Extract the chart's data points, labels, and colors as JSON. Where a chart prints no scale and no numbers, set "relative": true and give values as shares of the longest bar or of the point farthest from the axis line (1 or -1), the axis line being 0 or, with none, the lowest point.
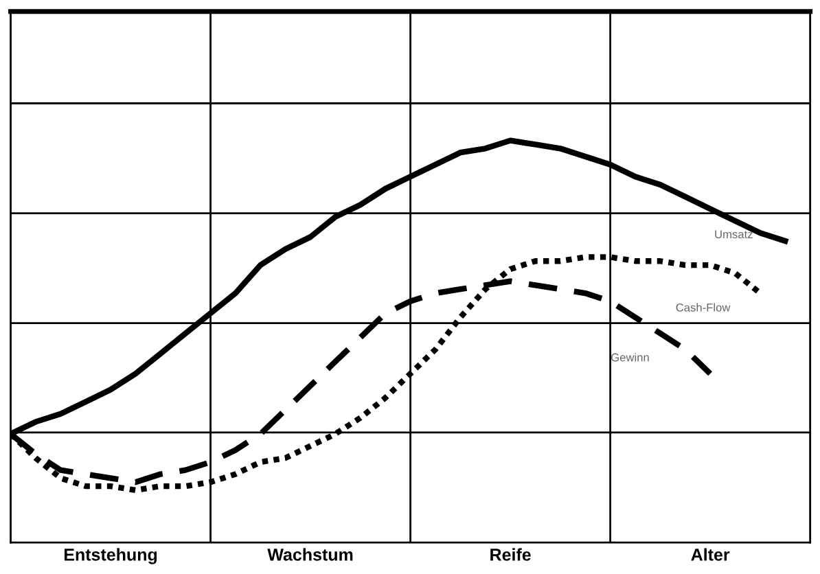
{
  "chart_data": {
    "type": "line",
    "relative": true,
    "grid": true,
    "legend": false,
    "marker": "none",
    "categories": [
      null,
      null,
      null,
      null,
      "Entstehung",
      null,
      null,
      null,
      null,
      null,
      null,
      null,
      "Wachstum",
      null,
      null,
      null,
      null,
      null,
      null,
      null,
      "Reife",
      null,
      null,
      null,
      null,
      null,
      null,
      null,
      "Alter",
      null,
      null,
      null,
      null
    ],
    "series": [
      {
        "name": "Umsatz",
        "color": "#000000",
        "line_style": "solid",
        "values": [
          0.27,
          0.3,
          0.32,
          0.35,
          0.38,
          0.42,
          0.47,
          0.52,
          0.57,
          0.62,
          0.69,
          0.73,
          0.76,
          0.81,
          0.84,
          0.88,
          0.91,
          0.94,
          0.97,
          0.98,
          1,
          0.99,
          0.98,
          0.96,
          0.94,
          0.91,
          0.89,
          0.86,
          0.83,
          0.8,
          0.77,
          0.75,
          null
        ]
      },
      {
        "name": "Cash-Flow",
        "color": "#000000",
        "line_style": "dotted",
        "values": [
          0.27,
          0.21,
          0.16,
          0.14,
          0.14,
          0.13,
          0.14,
          0.14,
          0.15,
          0.17,
          0.2,
          0.21,
          0.24,
          0.27,
          0.31,
          0.36,
          0.42,
          0.48,
          0.56,
          0.63,
          0.68,
          0.7,
          0.7,
          0.71,
          0.71,
          0.7,
          0.7,
          0.69,
          0.69,
          0.67,
          0.62,
          null,
          null
        ]
      },
      {
        "name": "Gewinn",
        "color": "#000000",
        "line_style": "dashed",
        "values": [
          0.27,
          0.22,
          0.18,
          0.17,
          0.16,
          0.15,
          0.17,
          0.18,
          0.2,
          0.23,
          0.27,
          0.33,
          0.39,
          0.45,
          0.51,
          0.57,
          0.6,
          0.62,
          0.63,
          0.64,
          0.65,
          0.64,
          0.63,
          0.62,
          0.6,
          0.56,
          0.52,
          0.48,
          0.42,
          null,
          null,
          null,
          null
        ]
      }
    ]
  }
}
